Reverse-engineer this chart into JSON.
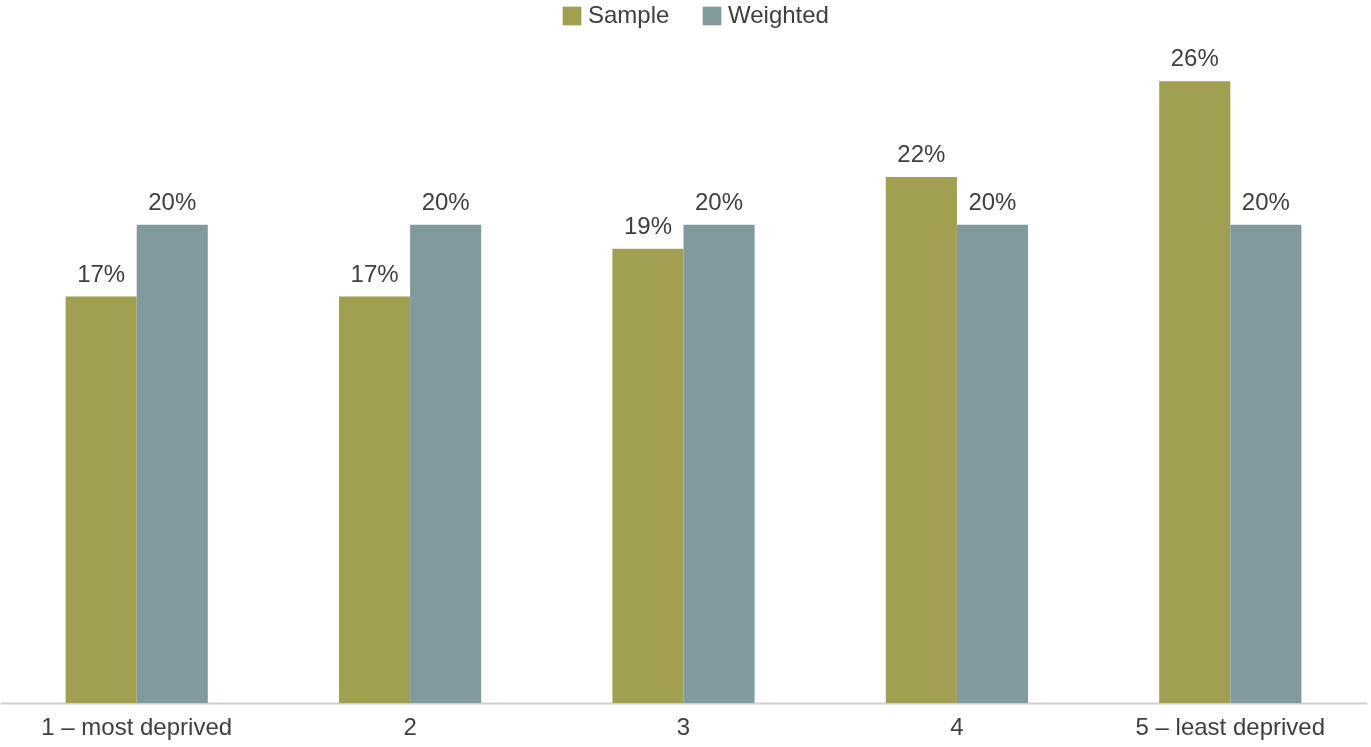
{
  "chart_data": {
    "type": "bar",
    "categories": [
      "1 – most deprived",
      "2",
      "3",
      "4",
      "5 – least deprived"
    ],
    "series": [
      {
        "name": "Sample",
        "color": "#a0a050",
        "values": [
          17,
          17,
          19,
          22,
          26
        ],
        "value_labels": [
          "17%",
          "17%",
          "19%",
          "22%",
          "26%"
        ]
      },
      {
        "name": "Weighted",
        "color": "#809a9e",
        "values": [
          20,
          20,
          20,
          20,
          20
        ],
        "value_labels": [
          "20%",
          "20%",
          "20%",
          "20%",
          "20%"
        ]
      }
    ],
    "grid": false,
    "legend": "top"
  }
}
